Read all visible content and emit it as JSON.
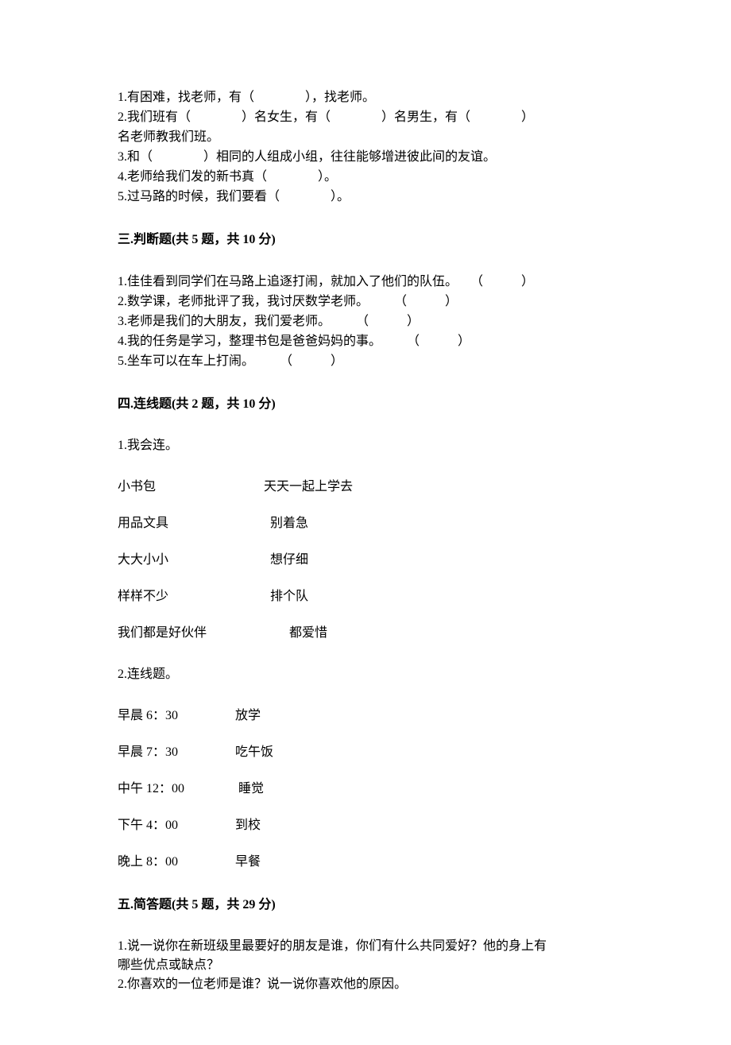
{
  "fill": {
    "q1": "1.有困难，找老师，有（　　　　），找老师。",
    "q2a": "2.我们班有（　　　　）名女生，有（　　　　）名男生，有（　　　　）",
    "q2b": "名老师教我们班。",
    "q3": "3.和（　　　　）相同的人组成小组，往往能够增进彼此间的友谊。",
    "q4": "4.老师给我们发的新书真（　　　　）。",
    "q5": "5.过马路的时候，我们要看（　　　　）。"
  },
  "section3": {
    "header": "三.判断题(共 5 题，共 10 分)",
    "q1": "1.佳佳看到同学们在马路上追逐打闹，就加入了他们的队伍。　　（　　　）",
    "q2": "2.数学课，老师批评了我，我讨厌数学老师。　　　（　　　）",
    "q3": "3.老师是我们的大朋友，我们爱老师。　　　（　　　）",
    "q4": "4.我的任务是学习，整理书包是爸爸妈妈的事。　　　（　　　）",
    "q5": "5.坐车可以在车上打闹。　　　（　　　）"
  },
  "section4": {
    "header": "四.连线题(共 2 题，共 10 分)",
    "intro1": "1.我会连。",
    "m1": {
      "r1": "小书包                                  天天一起上学去",
      "r2": "用品文具                                别着急",
      "r3": "大大小小                                想仔细",
      "r4": "样样不少                                排个队",
      "r5": "我们都是好伙伴                          都爱惜"
    },
    "intro2": "2.连线题。",
    "m2": {
      "r1": "早晨 6：30                  放学",
      "r2": "早晨 7：30                  吃午饭",
      "r3": "中午 12：00                 睡觉",
      "r4": "下午 4：00                  到校",
      "r5": "晚上 8：00                  早餐"
    }
  },
  "section5": {
    "header": "五.简答题(共 5 题，共 29 分)",
    "q1a": "1.说一说你在新班级里最要好的朋友是谁，你们有什么共同爱好？他的身上有",
    "q1b": "哪些优点或缺点？",
    "q2": "2.你喜欢的一位老师是谁？说一说你喜欢他的原因。"
  }
}
